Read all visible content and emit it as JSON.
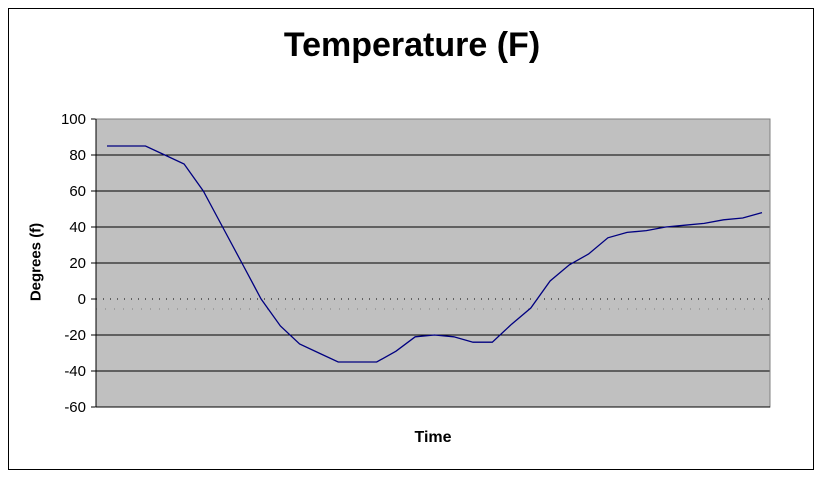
{
  "chart_data": {
    "type": "line",
    "title": "Temperature (F)",
    "xlabel": "Time",
    "ylabel": "Degrees (f)",
    "ylim": [
      -60,
      100
    ],
    "yticks": [
      100,
      80,
      60,
      40,
      20,
      0,
      -20,
      -40,
      -60
    ],
    "grid": true,
    "colors": {
      "plot_background": "#c0c0c0",
      "line": "#000080",
      "gridline": "#000000"
    },
    "series": [
      {
        "values": [
          85,
          85,
          85,
          80,
          75,
          60,
          40,
          20,
          0,
          -15,
          -25,
          -30,
          -35,
          -35,
          -35,
          -29,
          -21,
          -20,
          -21,
          -24,
          -24,
          -14,
          -5,
          10,
          19,
          25,
          34,
          37,
          38,
          40,
          41,
          42,
          44,
          45,
          48
        ]
      }
    ]
  }
}
